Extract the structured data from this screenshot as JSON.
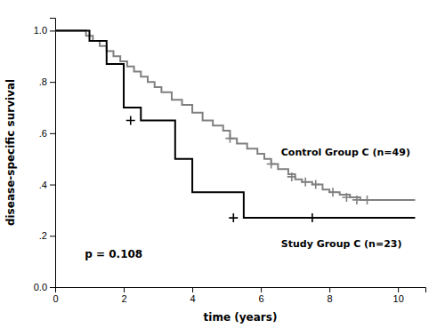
{
  "chart_data": {
    "type": "step",
    "xlabel": "time (years)",
    "ylabel": "disease-specific survival",
    "xlim": [
      0,
      10.8
    ],
    "ylim": [
      0.0,
      1.05
    ],
    "xticks": [
      0,
      2,
      4,
      6,
      8,
      10
    ],
    "yticks": [
      {
        "value": 0.0,
        "label": "0.0"
      },
      {
        "value": 0.2,
        "label": ".2"
      },
      {
        "value": 0.4,
        "label": ".4"
      },
      {
        "value": 0.6,
        "label": ".6"
      },
      {
        "value": 0.8,
        "label": ".8"
      },
      {
        "value": 1.0,
        "label": "1.0"
      }
    ],
    "grid": false,
    "series": [
      {
        "name": "Study Group C (n=23)",
        "color": "#000000",
        "x": [
          0,
          0.7,
          1.0,
          1.5,
          1.8,
          2.0,
          2.5,
          3.5,
          4.0,
          5.5,
          6.5,
          10.5
        ],
        "values": [
          1.0,
          1.0,
          0.96,
          0.87,
          0.87,
          0.7,
          0.65,
          0.5,
          0.37,
          0.27,
          0.27,
          0.27
        ],
        "censored_x": [
          2.2,
          5.2,
          7.5
        ],
        "censored_y": [
          0.65,
          0.27,
          0.27
        ]
      },
      {
        "name": "Control Group C (n=49)",
        "color": "#808080",
        "x": [
          0,
          0.6,
          0.9,
          1.1,
          1.3,
          1.5,
          1.7,
          1.9,
          2.1,
          2.3,
          2.5,
          2.7,
          2.9,
          3.1,
          3.4,
          3.7,
          4.0,
          4.3,
          4.6,
          4.9,
          5.1,
          5.3,
          5.6,
          5.9,
          6.1,
          6.3,
          6.5,
          6.8,
          7.0,
          7.2,
          7.5,
          7.8,
          8.0,
          8.3,
          8.6,
          8.9,
          10.5
        ],
        "values": [
          1.0,
          1.0,
          0.98,
          0.96,
          0.94,
          0.92,
          0.9,
          0.88,
          0.86,
          0.84,
          0.82,
          0.8,
          0.78,
          0.76,
          0.73,
          0.71,
          0.68,
          0.65,
          0.63,
          0.61,
          0.58,
          0.56,
          0.54,
          0.52,
          0.5,
          0.48,
          0.46,
          0.44,
          0.42,
          0.41,
          0.4,
          0.38,
          0.37,
          0.36,
          0.35,
          0.34,
          0.34
        ],
        "censored_x": [
          5.1,
          6.3,
          6.9,
          7.3,
          7.6,
          8.1,
          8.5,
          8.8,
          9.1
        ],
        "censored_y": [
          0.58,
          0.48,
          0.43,
          0.41,
          0.4,
          0.37,
          0.35,
          0.34,
          0.34
        ]
      }
    ],
    "annotations": [
      {
        "text": "p = 0.108"
      }
    ]
  }
}
